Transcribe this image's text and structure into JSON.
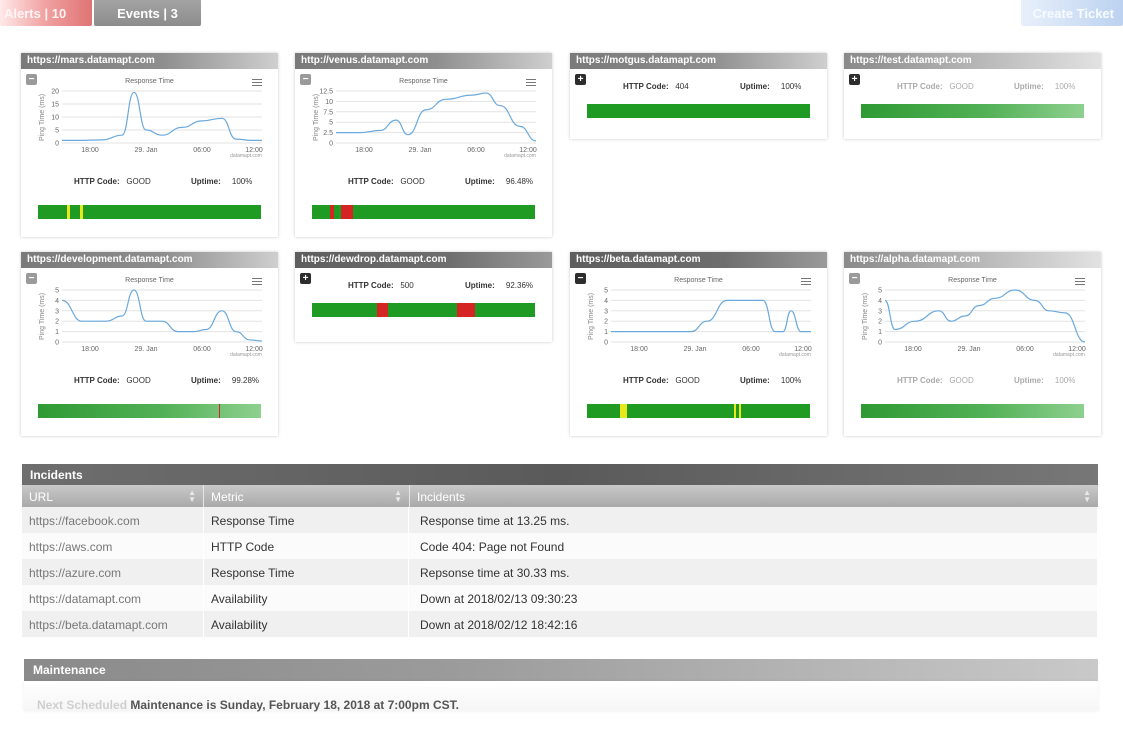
{
  "tabs": {
    "alerts": "Alerts | 10",
    "events": "Events | 3",
    "create_ticket": "Create Ticket"
  },
  "chart_common": {
    "title": "Response Time",
    "ylabel": "Ping Time (ms)",
    "x_ticks": [
      "18:00",
      "29. Jan",
      "06:00",
      "12:00"
    ],
    "credit": "datamapt.com",
    "http_label": "HTTP Code:",
    "uptime_label": "Uptime:"
  },
  "colors": {
    "status_green": "#1f9a23",
    "alert_red": "#d42424",
    "warn_yellow": "#e8e81c",
    "line_blue": "#6aa9dd"
  },
  "monitors": [
    {
      "url": "https://mars.datamapt.com",
      "expanded": true,
      "http_code": "GOOD",
      "uptime": "100%",
      "chart_data": {
        "type": "line",
        "y_ticks": [
          0,
          5,
          10,
          15,
          20
        ],
        "ylim": [
          0,
          20
        ],
        "x": [
          0,
          0.08,
          0.2,
          0.3,
          0.36,
          0.42,
          0.5,
          0.6,
          0.7,
          0.8,
          0.87,
          0.95,
          1
        ],
        "y": [
          1,
          1,
          1.2,
          3,
          19.5,
          5,
          3,
          6,
          8.5,
          9.5,
          1.5,
          1,
          1
        ]
      },
      "status": [
        {
          "color": "green"
        },
        {
          "color": "yellow",
          "at": 0.13,
          "w": 0.012
        },
        {
          "color": "yellow",
          "at": 0.19,
          "w": 0.012
        }
      ]
    },
    {
      "url": "http://venus.datamapt.com",
      "expanded": true,
      "http_code": "GOOD",
      "uptime": "96.48%",
      "chart_data": {
        "type": "line",
        "y_ticks": [
          0,
          2.5,
          5,
          7.5,
          10,
          12.5
        ],
        "ylim": [
          0,
          12.5
        ],
        "x": [
          0,
          0.12,
          0.22,
          0.3,
          0.36,
          0.45,
          0.55,
          0.68,
          0.75,
          0.82,
          0.92,
          1
        ],
        "y": [
          2.5,
          2.5,
          3,
          5.5,
          2,
          8,
          10.5,
          11.5,
          12,
          9,
          4,
          0.5
        ]
      },
      "status": [
        {
          "color": "green"
        },
        {
          "color": "red",
          "at": 0.08,
          "w": 0.02
        },
        {
          "color": "red",
          "at": 0.13,
          "w": 0.055
        }
      ]
    },
    {
      "url": "https://motgus.datamapt.com",
      "expanded": false,
      "http_code": "404",
      "uptime": "100%",
      "status": [
        {
          "color": "green"
        }
      ]
    },
    {
      "url": "https://test.datamapt.com",
      "expanded": false,
      "faded": true,
      "http_code": "GOOD",
      "uptime": "100%",
      "status": [
        {
          "color": "green"
        }
      ]
    },
    {
      "url": "https://development.datamapt.com",
      "expanded": true,
      "http_code": "GOOD",
      "uptime": "99.28%",
      "chart_data": {
        "type": "line",
        "y_ticks": [
          0,
          1,
          2,
          3,
          4,
          5
        ],
        "ylim": [
          0,
          5
        ],
        "x": [
          0,
          0.1,
          0.22,
          0.3,
          0.36,
          0.42,
          0.5,
          0.58,
          0.66,
          0.72,
          0.8,
          0.87,
          0.94,
          1
        ],
        "y": [
          4,
          2,
          2,
          2.5,
          5,
          2,
          2,
          1,
          1,
          1.2,
          3,
          1,
          0.2,
          0.1
        ]
      },
      "status": [
        {
          "color": "green"
        },
        {
          "color": "red",
          "at": 0.81,
          "w": 0.008
        }
      ]
    },
    {
      "url": "https://dewdrop.datamapt.com",
      "expanded": false,
      "dark": true,
      "http_code": "500",
      "uptime": "92.36%",
      "status": [
        {
          "color": "green"
        },
        {
          "color": "red",
          "at": 0.29,
          "w": 0.05
        },
        {
          "color": "red",
          "at": 0.65,
          "w": 0.08
        }
      ]
    },
    {
      "url": "https://beta.datamapt.com",
      "expanded": true,
      "dark": true,
      "http_code": "GOOD",
      "uptime": "100%",
      "chart_data": {
        "type": "line",
        "y_ticks": [
          0,
          1,
          2,
          3,
          4,
          5
        ],
        "ylim": [
          0,
          5
        ],
        "x": [
          0,
          0.2,
          0.4,
          0.48,
          0.58,
          0.68,
          0.76,
          0.82,
          0.86,
          0.9,
          0.95,
          1
        ],
        "y": [
          1,
          1,
          1,
          2,
          4,
          4,
          4,
          1,
          1,
          3,
          1,
          1
        ]
      },
      "status": [
        {
          "color": "green"
        },
        {
          "color": "yellow",
          "at": 0.15,
          "w": 0.03
        },
        {
          "color": "yellow",
          "at": 0.66,
          "w": 0.01
        },
        {
          "color": "yellow",
          "at": 0.68,
          "w": 0.01
        }
      ]
    },
    {
      "url": "https://alpha.datamapt.com",
      "expanded": true,
      "faded": true,
      "http_code": "GOOD",
      "uptime": "100%",
      "chart_data": {
        "type": "line",
        "y_ticks": [
          0,
          1,
          2,
          3,
          4,
          5
        ],
        "ylim": [
          0,
          5
        ],
        "x": [
          0,
          0.05,
          0.15,
          0.27,
          0.33,
          0.4,
          0.47,
          0.55,
          0.65,
          0.75,
          0.82,
          0.9,
          1
        ],
        "y": [
          4,
          1.2,
          2,
          3,
          2,
          2.5,
          3.5,
          4.2,
          5,
          4,
          3,
          2.8,
          0
        ]
      },
      "status": [
        {
          "color": "green"
        }
      ]
    }
  ],
  "incidents": {
    "title": "Incidents",
    "columns": [
      "URL",
      "Metric",
      "Incidents"
    ],
    "rows": [
      {
        "url": "https://facebook.com",
        "metric": "Response Time",
        "incident": "Response time at 13.25 ms."
      },
      {
        "url": "https://aws.com",
        "metric": "HTTP Code",
        "incident": "Code 404: Page not Found"
      },
      {
        "url": "https://azure.com",
        "metric": "Response Time",
        "incident": "Repsonse time at 30.33 ms."
      },
      {
        "url": "https://datamapt.com",
        "metric": "Availability",
        "incident": "Down at 2018/02/13  09:30:23"
      },
      {
        "url": "https://beta.datamapt.com",
        "metric": "Availability",
        "incident": "Down at 2018/02/12 18:42:16"
      }
    ]
  },
  "maintenance": {
    "title": "Maintenance",
    "lead": "Next Scheduled",
    "text": "Maintenance is Sunday, February 18, 2018 at 7:00pm CST."
  }
}
